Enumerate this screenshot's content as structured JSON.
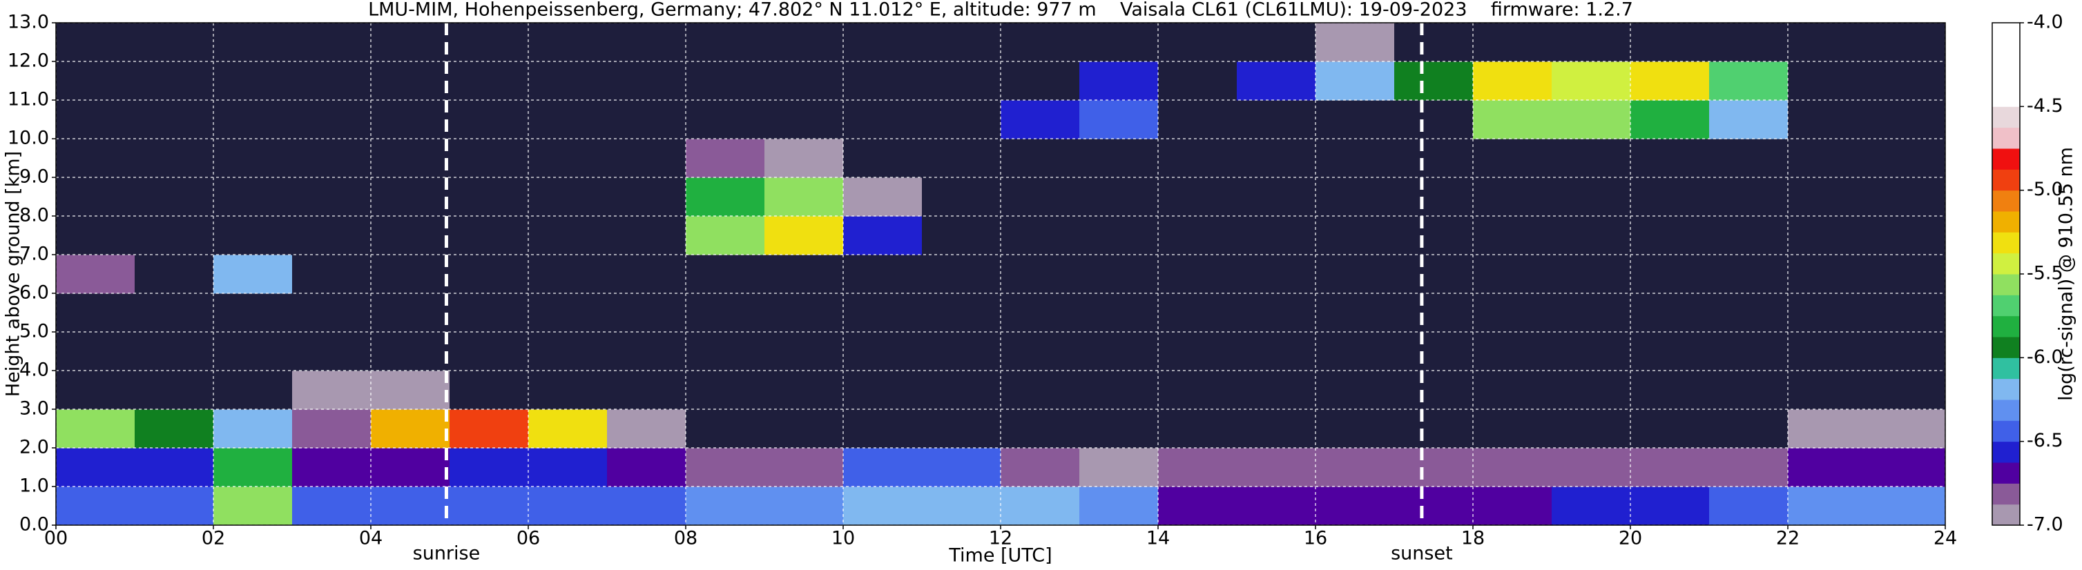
{
  "chart_data": {
    "type": "heatmap",
    "title": "LMU-MIM, Hohenpeissenberg, Germany; 47.802° N 11.012° E, altitude: 977 m    Vaisala CL61 (CL61LMU): 19-09-2023    firmware: 1.2.7",
    "x_label": "Time [UTC]",
    "y_label": "Height above ground [km]",
    "x": [
      0,
      1,
      2,
      3,
      4,
      5,
      6,
      7,
      8,
      9,
      10,
      11,
      12,
      13,
      14,
      15,
      16,
      17,
      18,
      19,
      20,
      21,
      22,
      23,
      24
    ],
    "y": [
      0,
      1,
      2,
      3,
      4,
      5,
      6,
      7,
      8,
      9,
      10,
      11,
      12,
      13
    ],
    "z": [
      [
        -6.4,
        -6.4,
        -5.6,
        -6.5,
        -6.5,
        -6.4,
        -6.5,
        -6.4,
        -6.3,
        -6.3,
        -6.2,
        -6.2,
        -6.2,
        -6.3,
        -6.7,
        -6.7,
        -6.7,
        -6.7,
        -6.7,
        -6.6,
        -6.6,
        -6.5,
        -6.3,
        -6.3
      ],
      [
        -6.6,
        -6.6,
        -5.8,
        -6.7,
        -6.7,
        -6.6,
        -6.6,
        -6.7,
        -6.8,
        -6.8,
        -6.5,
        -6.5,
        -6.8,
        -6.9,
        -6.85,
        -6.85,
        -6.85,
        -6.85,
        -6.8,
        -6.8,
        -6.8,
        -6.8,
        -6.75,
        -6.75
      ],
      [
        -5.6,
        -6.0,
        -6.2,
        -6.8,
        -5.2,
        -5.0,
        -5.3,
        -6.9,
        -7.1,
        -7.1,
        -7.1,
        -7.1,
        -7.1,
        -7.1,
        -7.1,
        -7.1,
        -7.1,
        -7.1,
        -7.1,
        -7.1,
        -7.1,
        -7.1,
        -6.95,
        -7.0
      ],
      [
        -7.2,
        -7.2,
        -7.2,
        -6.9,
        -6.95,
        -7.2,
        -7.1,
        -7.1,
        -7.1,
        -7.1,
        -7.1,
        -7.1,
        -7.1,
        -7.1,
        -7.2,
        -7.2,
        -7.2,
        -7.2,
        -7.2,
        -7.2,
        -7.2,
        -7.2,
        -7.2,
        -7.2
      ],
      [
        -7.2,
        -7.2,
        -7.2,
        -7.2,
        -7.2,
        -7.2,
        -7.1,
        -7.1,
        -7.1,
        -7.1,
        -7.1,
        -7.1,
        -7.1,
        -7.1,
        -7.2,
        -7.2,
        -7.2,
        -7.2,
        -7.2,
        -7.2,
        -7.2,
        -7.2,
        -7.2,
        -7.2
      ],
      [
        -7.2,
        -7.2,
        -7.2,
        -7.2,
        -7.2,
        -7.2,
        -7.1,
        -7.1,
        -7.1,
        -7.1,
        -7.1,
        -7.1,
        -7.1,
        -7.1,
        -7.2,
        -7.2,
        -7.2,
        -7.2,
        -7.2,
        -7.2,
        -7.2,
        -7.2,
        -7.2,
        -7.2
      ],
      [
        -6.8,
        -7.2,
        -6.2,
        -7.2,
        -7.2,
        -7.2,
        -7.1,
        -7.1,
        -7.1,
        -7.1,
        -7.1,
        -7.1,
        -7.1,
        -7.1,
        -7.2,
        -7.2,
        -7.2,
        -7.2,
        -7.2,
        -7.2,
        -7.2,
        -7.2,
        -7.2,
        -7.2
      ],
      [
        -7.2,
        -7.2,
        -7.2,
        -7.2,
        -7.2,
        -7.2,
        -7.1,
        -7.1,
        -5.6,
        -5.3,
        -6.6,
        -7.1,
        -7.1,
        -7.1,
        -7.2,
        -7.2,
        -7.2,
        -7.2,
        -7.2,
        -7.2,
        -7.2,
        -7.2,
        -7.2,
        -7.2
      ],
      [
        -7.2,
        -7.2,
        -7.2,
        -7.2,
        -7.2,
        -7.2,
        -7.1,
        -7.1,
        -5.8,
        -5.6,
        -7.0,
        -7.1,
        -7.1,
        -7.1,
        -7.2,
        -7.2,
        -7.2,
        -7.2,
        -7.2,
        -7.2,
        -7.2,
        -7.2,
        -7.2,
        -7.2
      ],
      [
        -7.2,
        -7.2,
        -7.2,
        -7.2,
        -7.2,
        -7.2,
        -7.1,
        -7.1,
        -6.8,
        -6.9,
        -7.1,
        -7.1,
        -7.1,
        -7.1,
        -7.2,
        -7.2,
        -7.2,
        -7.2,
        -7.2,
        -7.2,
        -7.2,
        -7.2,
        -7.2,
        -7.2
      ],
      [
        -7.2,
        -7.2,
        -7.2,
        -7.2,
        -7.2,
        -7.2,
        -7.1,
        -7.1,
        -7.1,
        -7.1,
        -7.1,
        -7.1,
        -6.6,
        -6.5,
        -7.2,
        -7.2,
        -7.2,
        -7.2,
        -5.6,
        -5.6,
        -5.8,
        -6.2,
        -7.2,
        -7.2
      ],
      [
        -7.2,
        -7.2,
        -7.2,
        -7.2,
        -7.2,
        -7.2,
        -7.1,
        -7.1,
        -7.1,
        -7.1,
        -7.1,
        -7.1,
        -7.1,
        -6.6,
        -7.2,
        -6.6,
        -6.2,
        -6.0,
        -5.3,
        -5.4,
        -5.3,
        -5.7,
        -7.2,
        -7.2
      ],
      [
        -7.2,
        -7.2,
        -7.2,
        -7.2,
        -7.2,
        -7.2,
        -7.1,
        -7.1,
        -7.1,
        -7.1,
        -7.1,
        -7.1,
        -7.1,
        -7.1,
        -7.2,
        -7.2,
        -6.9,
        -7.2,
        -7.2,
        -7.2,
        -7.2,
        -7.2,
        -7.2,
        -7.2
      ]
    ],
    "xlim": [
      0,
      24
    ],
    "ylim": [
      0,
      13
    ],
    "xticks": [
      {
        "value": 0,
        "label": "00"
      },
      {
        "value": 2,
        "label": "02"
      },
      {
        "value": 4,
        "label": "04"
      },
      {
        "value": 6,
        "label": "06"
      },
      {
        "value": 8,
        "label": "08"
      },
      {
        "value": 10,
        "label": "10"
      },
      {
        "value": 12,
        "label": "12"
      },
      {
        "value": 14,
        "label": "14"
      },
      {
        "value": 16,
        "label": "16"
      },
      {
        "value": 18,
        "label": "18"
      },
      {
        "value": 20,
        "label": "20"
      },
      {
        "value": 22,
        "label": "22"
      },
      {
        "value": 24,
        "label": "24"
      }
    ],
    "yticks": [
      {
        "value": 0,
        "label": "0.0"
      },
      {
        "value": 1,
        "label": "1.0"
      },
      {
        "value": 2,
        "label": "2.0"
      },
      {
        "value": 3,
        "label": "3.0"
      },
      {
        "value": 4,
        "label": "4.0"
      },
      {
        "value": 5,
        "label": "5.0"
      },
      {
        "value": 6,
        "label": "6.0"
      },
      {
        "value": 7,
        "label": "7.0"
      },
      {
        "value": 8,
        "label": "8.0"
      },
      {
        "value": 9,
        "label": "9.0"
      },
      {
        "value": 10,
        "label": "10.0"
      },
      {
        "value": 11,
        "label": "11.0"
      },
      {
        "value": 12,
        "label": "12.0"
      },
      {
        "value": 13,
        "label": "13.0"
      }
    ],
    "grid": true,
    "annotations": [
      {
        "text": "sunrise",
        "x": 4.96
      },
      {
        "text": "sunset",
        "x": 17.35
      }
    ],
    "colorbar": {
      "label": "log(rc-signal) @ 910.55 nm",
      "lim": [
        -7,
        -4
      ],
      "ticks": [
        {
          "value": -4,
          "label": "-4.0"
        },
        -4.5,
        {
          "value": -5,
          "label": "-5.0"
        },
        -5.5,
        {
          "value": -6,
          "label": "-6.0"
        },
        -6.5,
        {
          "value": -7,
          "label": "-7.0"
        }
      ],
      "under_color": "#1e1e3c",
      "colors": [
        "#a898b0",
        "#8a5a98",
        "#5000a0",
        "#2020d0",
        "#4060e8",
        "#6090f0",
        "#80b8f0",
        "#30c0a0",
        "#108020",
        "#20b040",
        "#50d070",
        "#90e060",
        "#d0f040",
        "#f0e010",
        "#f0b000",
        "#f08010",
        "#f04010",
        "#f01010",
        "#f0c0c8",
        "#e8d8dc",
        "#ffffff",
        "#ffffff",
        "#ffffff",
        "#ffffff"
      ]
    }
  }
}
